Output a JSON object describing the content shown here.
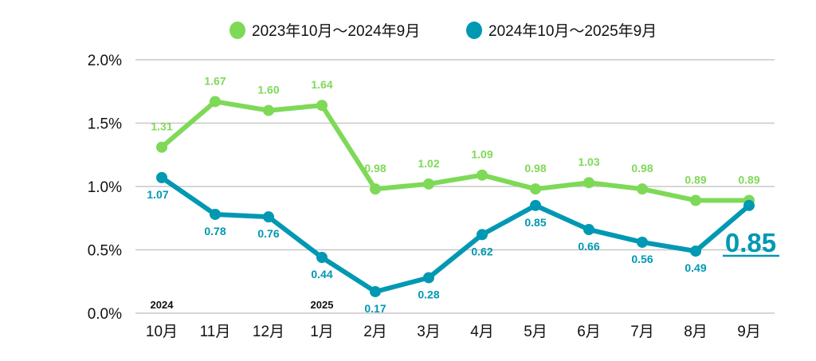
{
  "chart_data": {
    "type": "line",
    "title": "",
    "xlabel": "",
    "ylabel": "",
    "categories": [
      "10月",
      "11月",
      "12月",
      "1月",
      "2月",
      "3月",
      "4月",
      "5月",
      "6月",
      "7月",
      "8月",
      "9月"
    ],
    "year_markers": [
      {
        "index": 0,
        "label": "2024"
      },
      {
        "index": 3,
        "label": "2025"
      }
    ],
    "y_ticks": [
      "0.0%",
      "0.5%",
      "1.0%",
      "1.5%",
      "2.0%"
    ],
    "y_tick_values": [
      0,
      0.5,
      1.0,
      1.5,
      2.0
    ],
    "ylim": [
      0,
      2.0
    ],
    "grid": true,
    "legend_position": "top-center",
    "series": [
      {
        "name": "2023年10月～2024年9月",
        "color": "#7ed957",
        "values": [
          1.31,
          1.67,
          1.6,
          1.64,
          0.98,
          1.02,
          1.09,
          0.98,
          1.03,
          0.98,
          0.89,
          0.89
        ],
        "labels": [
          "1.31",
          "1.67",
          "1.60",
          "1.64",
          "0.98",
          "1.02",
          "1.09",
          "0.98",
          "1.03",
          "0.98",
          "0.89",
          "0.89"
        ]
      },
      {
        "name": "2024年10月～2025年9月",
        "color": "#0098b2",
        "values": [
          1.07,
          0.78,
          0.76,
          0.44,
          0.17,
          0.28,
          0.62,
          0.85,
          0.66,
          0.56,
          0.49,
          0.85
        ],
        "labels": [
          "1.07",
          "0.78",
          "0.76",
          "0.44",
          "0.17",
          "0.28",
          "0.62",
          "0.85",
          "0.66",
          "0.56",
          "0.49",
          ""
        ]
      }
    ],
    "highlight": {
      "label": "0.85",
      "color": "#0098b2"
    }
  }
}
